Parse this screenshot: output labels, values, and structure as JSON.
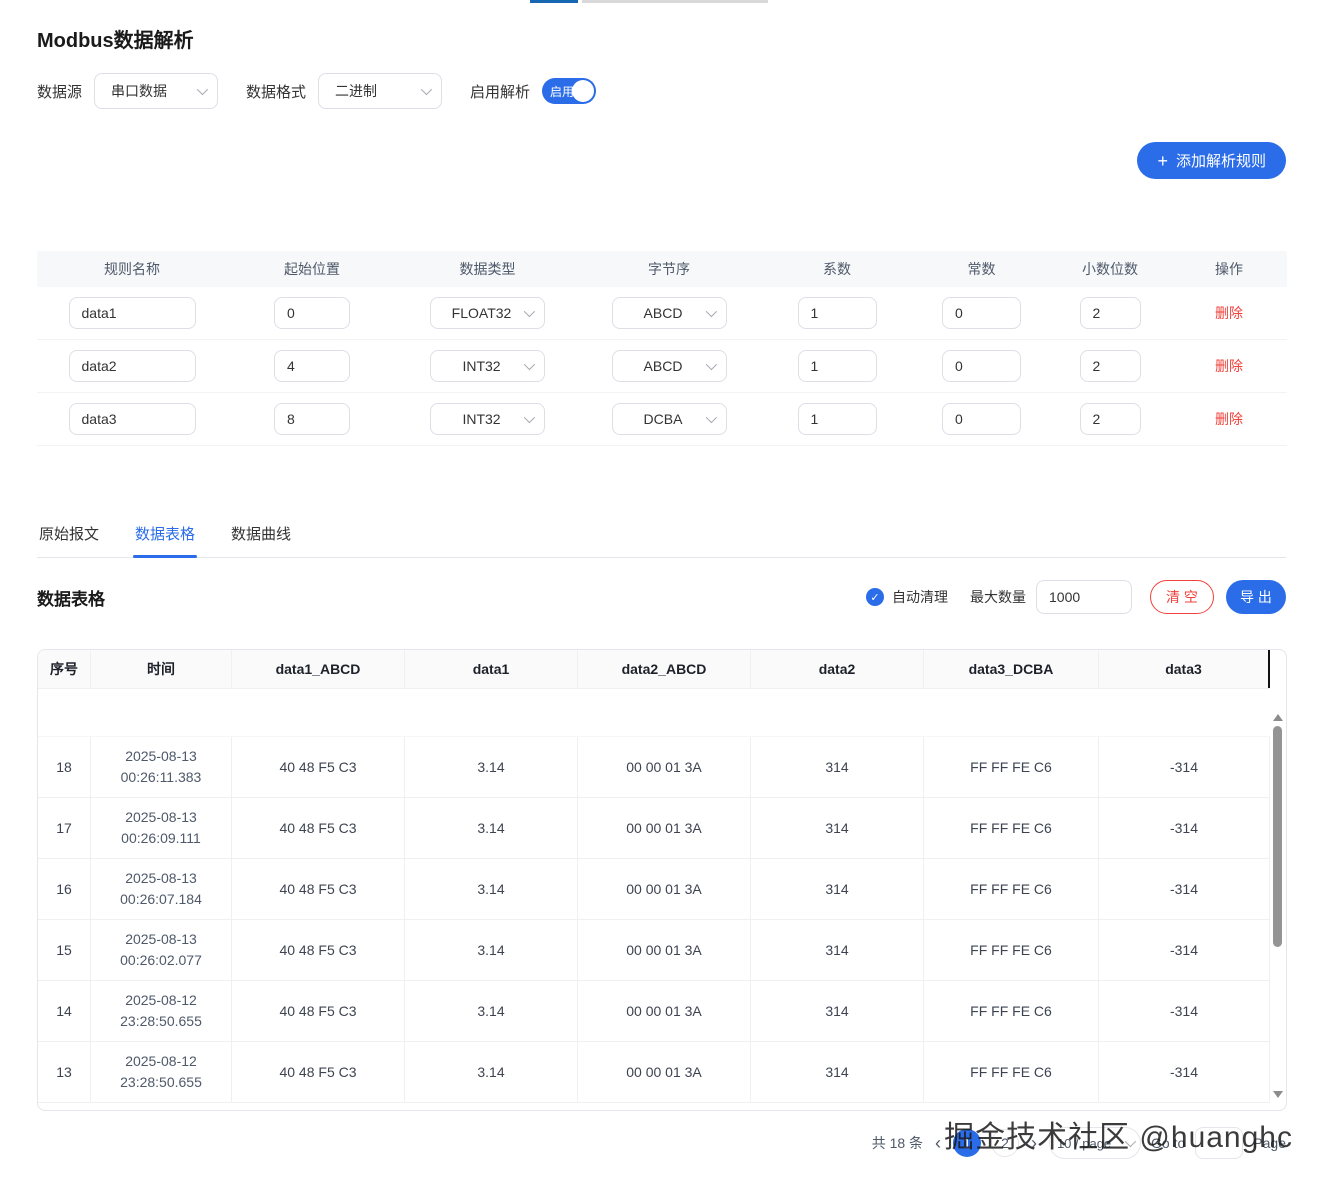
{
  "colors": {
    "primary": "#2b6ce8",
    "danger": "#f0413c"
  },
  "icons": {
    "plus": "+",
    "check": "✓",
    "chevron_prev": "‹",
    "chevron_next": "›"
  },
  "header": {
    "title": "Modbus数据解析"
  },
  "form": {
    "source_label": "数据源",
    "source_value": "串口数据",
    "format_label": "数据格式",
    "format_value": "二进制",
    "enable_label": "启用解析",
    "toggle_on_text": "启用"
  },
  "add_rule_button": "添加解析规则",
  "rules_table": {
    "headers": [
      "规则名称",
      "起始位置",
      "数据类型",
      "字节序",
      "系数",
      "常数",
      "小数位数",
      "操作"
    ],
    "delete_label": "删除",
    "rows": [
      {
        "name": "data1",
        "start": "0",
        "type": "FLOAT32",
        "endian": "ABCD",
        "coef": "1",
        "const": "0",
        "decimals": "2"
      },
      {
        "name": "data2",
        "start": "4",
        "type": "INT32",
        "endian": "ABCD",
        "coef": "1",
        "const": "0",
        "decimals": "2"
      },
      {
        "name": "data3",
        "start": "8",
        "type": "INT32",
        "endian": "DCBA",
        "coef": "1",
        "const": "0",
        "decimals": "2"
      }
    ]
  },
  "tabs": [
    {
      "label": "原始报文",
      "active": false
    },
    {
      "label": "数据表格",
      "active": true
    },
    {
      "label": "数据曲线",
      "active": false
    }
  ],
  "data_section": {
    "title": "数据表格",
    "auto_clear_label": "自动清理",
    "max_count_label": "最大数量",
    "max_count_value": "1000",
    "clear_button": "清 空",
    "export_button": "导 出"
  },
  "data_table": {
    "headers": [
      "序号",
      "时间",
      "data1_ABCD",
      "data1",
      "data2_ABCD",
      "data2",
      "data3_DCBA",
      "data3"
    ],
    "rows": [
      {
        "no": "18",
        "date": "2025-08-13",
        "time": "00:26:11.383",
        "d1h": "40 48 F5 C3",
        "d1": "3.14",
        "d2h": "00 00 01 3A",
        "d2": "314",
        "d3h": "FF FF FE C6",
        "d3": "-314"
      },
      {
        "no": "17",
        "date": "2025-08-13",
        "time": "00:26:09.111",
        "d1h": "40 48 F5 C3",
        "d1": "3.14",
        "d2h": "00 00 01 3A",
        "d2": "314",
        "d3h": "FF FF FE C6",
        "d3": "-314"
      },
      {
        "no": "16",
        "date": "2025-08-13",
        "time": "00:26:07.184",
        "d1h": "40 48 F5 C3",
        "d1": "3.14",
        "d2h": "00 00 01 3A",
        "d2": "314",
        "d3h": "FF FF FE C6",
        "d3": "-314"
      },
      {
        "no": "15",
        "date": "2025-08-13",
        "time": "00:26:02.077",
        "d1h": "40 48 F5 C3",
        "d1": "3.14",
        "d2h": "00 00 01 3A",
        "d2": "314",
        "d3h": "FF FF FE C6",
        "d3": "-314"
      },
      {
        "no": "14",
        "date": "2025-08-12",
        "time": "23:28:50.655",
        "d1h": "40 48 F5 C3",
        "d1": "3.14",
        "d2h": "00 00 01 3A",
        "d2": "314",
        "d3h": "FF FF FE C6",
        "d3": "-314"
      },
      {
        "no": "13",
        "date": "2025-08-12",
        "time": "23:28:50.655",
        "d1h": "40 48 F5 C3",
        "d1": "3.14",
        "d2h": "00 00 01 3A",
        "d2": "314",
        "d3h": "FF FF FE C6",
        "d3": "-314"
      }
    ]
  },
  "pagination": {
    "total": "共 18 条",
    "current_page": "1",
    "other_page": "2",
    "page_size": "10 / page",
    "goto_label": "Go to",
    "page_label": "Page"
  },
  "watermark": "掘金技术社区 @huanghc"
}
